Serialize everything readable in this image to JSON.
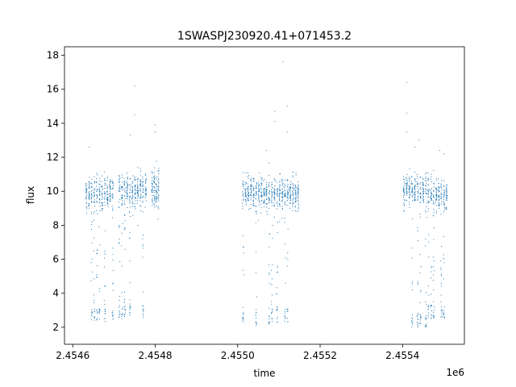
{
  "chart_data": {
    "type": "scatter",
    "title": "1SWASPJ230920.41+071453.2",
    "xlabel": "time",
    "ylabel": "flux",
    "x_offset_label": "1e6",
    "xlim": [
      2.45458,
      2.45555
    ],
    "ylim": [
      1.0,
      18.5
    ],
    "x_ticks": [
      {
        "value": 2.4546,
        "label": "2.4546"
      },
      {
        "value": 2.4548,
        "label": "2.4548"
      },
      {
        "value": 2.455,
        "label": "2.4550"
      },
      {
        "value": 2.4552,
        "label": "2.4552"
      },
      {
        "value": 2.4554,
        "label": "2.4554"
      }
    ],
    "y_ticks": [
      {
        "value": 2,
        "label": "2"
      },
      {
        "value": 4,
        "label": "4"
      },
      {
        "value": 6,
        "label": "6"
      },
      {
        "value": 8,
        "label": "8"
      },
      {
        "value": 10,
        "label": "10"
      },
      {
        "value": 12,
        "label": "12"
      },
      {
        "value": 14,
        "label": "14"
      },
      {
        "value": 16,
        "label": "16"
      },
      {
        "value": 18,
        "label": "18"
      }
    ],
    "grid": false,
    "marker_color": "#1f77b4",
    "observing_segments": [
      {
        "x_start": 2.45463,
        "x_end": 2.4547,
        "baseline": 9.9,
        "scatter": 0.45,
        "dip_min": 2.3
      },
      {
        "x_start": 2.45471,
        "x_end": 2.45478,
        "baseline": 10.0,
        "scatter": 0.5,
        "dip_min": 2.5
      },
      {
        "x_start": 2.45479,
        "x_end": 2.45481,
        "baseline": 10.1,
        "scatter": 0.6,
        "dip_min": 9.0
      },
      {
        "x_start": 2.45501,
        "x_end": 2.45508,
        "baseline": 9.9,
        "scatter": 0.5,
        "dip_min": 2.1
      },
      {
        "x_start": 2.45508,
        "x_end": 2.45515,
        "baseline": 9.9,
        "scatter": 0.45,
        "dip_min": 2.3
      },
      {
        "x_start": 2.4554,
        "x_end": 2.45546,
        "baseline": 10.0,
        "scatter": 0.45,
        "dip_min": 2.0
      },
      {
        "x_start": 2.45546,
        "x_end": 2.45551,
        "baseline": 9.8,
        "scatter": 0.45,
        "dip_min": 2.5
      }
    ],
    "outliers": [
      {
        "x": 2.45464,
        "y": 12.6
      },
      {
        "x": 2.45474,
        "y": 13.3
      },
      {
        "x": 2.45475,
        "y": 14.5
      },
      {
        "x": 2.45475,
        "y": 16.2
      },
      {
        "x": 2.4548,
        "y": 13.5
      },
      {
        "x": 2.4548,
        "y": 13.9
      },
      {
        "x": 2.45509,
        "y": 14.7
      },
      {
        "x": 2.45509,
        "y": 14.1
      },
      {
        "x": 2.45511,
        "y": 17.6
      },
      {
        "x": 2.45512,
        "y": 15.0
      },
      {
        "x": 2.45512,
        "y": 13.5
      },
      {
        "x": 2.45507,
        "y": 12.4
      },
      {
        "x": 2.45541,
        "y": 16.4
      },
      {
        "x": 2.45541,
        "y": 14.6
      },
      {
        "x": 2.45541,
        "y": 13.5
      },
      {
        "x": 2.45543,
        "y": 12.6
      },
      {
        "x": 2.45544,
        "y": 13.0
      },
      {
        "x": 2.45549,
        "y": 12.4
      },
      {
        "x": 2.4555,
        "y": 12.2
      }
    ]
  }
}
